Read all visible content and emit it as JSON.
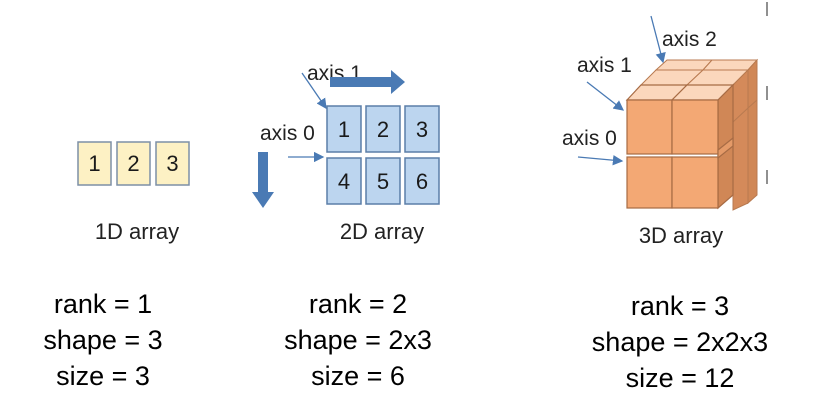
{
  "arrays": [
    {
      "caption": "1D array",
      "cells": [
        "1",
        "2",
        "3"
      ],
      "stats": {
        "rank": "rank = 1",
        "shape": "shape = 3",
        "size": "size = 3"
      }
    },
    {
      "caption": "2D array",
      "axis0_label": "axis 0",
      "axis1_label": "axis 1",
      "cells": [
        "1",
        "2",
        "3",
        "4",
        "5",
        "6"
      ],
      "stats": {
        "rank": "rank = 2",
        "shape": "shape = 2x3",
        "size": "size = 6"
      }
    },
    {
      "caption": "3D array",
      "axis0_label": "axis 0",
      "axis1_label": "axis 1",
      "axis2_label": "axis 2",
      "stats": {
        "rank": "rank = 3",
        "shape": "shape = 2x2x3",
        "size": "size = 12"
      }
    }
  ],
  "colors": {
    "cell_1d_fill": "#fdf1c4",
    "cell_2d_fill": "#bcd5ef",
    "arrow_blue": "#4a7ab4",
    "cube_front": "#f3a874",
    "cube_top": "#fbd7bc",
    "cube_side": "#d08756"
  }
}
